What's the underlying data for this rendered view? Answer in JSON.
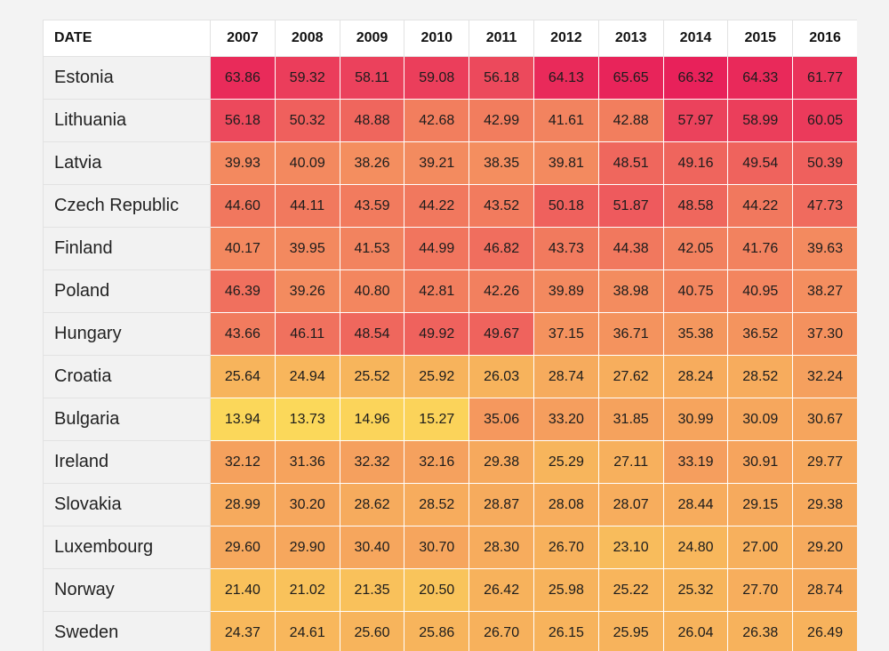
{
  "chart_data": {
    "type": "heatmap",
    "corner_label": "DATE",
    "x": [
      "2007",
      "2008",
      "2009",
      "2010",
      "2011",
      "2012",
      "2013",
      "2014",
      "2015",
      "2016"
    ],
    "y": [
      "Estonia",
      "Lithuania",
      "Latvia",
      "Czech Republic",
      "Finland",
      "Poland",
      "Hungary",
      "Croatia",
      "Bulgaria",
      "Ireland",
      "Slovakia",
      "Luxembourg",
      "Norway",
      "Sweden"
    ],
    "values": [
      [
        "63.86",
        "59.32",
        "58.11",
        "59.08",
        "56.18",
        "64.13",
        "65.65",
        "66.32",
        "64.33",
        "61.77"
      ],
      [
        "56.18",
        "50.32",
        "48.88",
        "42.68",
        "42.99",
        "41.61",
        "42.88",
        "57.97",
        "58.99",
        "60.05"
      ],
      [
        "39.93",
        "40.09",
        "38.26",
        "39.21",
        "38.35",
        "39.81",
        "48.51",
        "49.16",
        "49.54",
        "50.39"
      ],
      [
        "44.60",
        "44.11",
        "43.59",
        "44.22",
        "43.52",
        "50.18",
        "51.87",
        "48.58",
        "44.22",
        "47.73"
      ],
      [
        "40.17",
        "39.95",
        "41.53",
        "44.99",
        "46.82",
        "43.73",
        "44.38",
        "42.05",
        "41.76",
        "39.63"
      ],
      [
        "46.39",
        "39.26",
        "40.80",
        "42.81",
        "42.26",
        "39.89",
        "38.98",
        "40.75",
        "40.95",
        "38.27"
      ],
      [
        "43.66",
        "46.11",
        "48.54",
        "49.92",
        "49.67",
        "37.15",
        "36.71",
        "35.38",
        "36.52",
        "37.30"
      ],
      [
        "25.64",
        "24.94",
        "25.52",
        "25.92",
        "26.03",
        "28.74",
        "27.62",
        "28.24",
        "28.52",
        "32.24"
      ],
      [
        "13.94",
        "13.73",
        "14.96",
        "15.27",
        "35.06",
        "33.20",
        "31.85",
        "30.99",
        "30.09",
        "30.67"
      ],
      [
        "32.12",
        "31.36",
        "32.32",
        "32.16",
        "29.38",
        "25.29",
        "27.11",
        "33.19",
        "30.91",
        "29.77"
      ],
      [
        "28.99",
        "30.20",
        "28.62",
        "28.52",
        "28.87",
        "28.08",
        "28.07",
        "28.44",
        "29.15",
        "29.38"
      ],
      [
        "29.60",
        "29.90",
        "30.40",
        "30.70",
        "28.30",
        "26.70",
        "23.10",
        "24.80",
        "27.00",
        "29.20"
      ],
      [
        "21.40",
        "21.02",
        "21.35",
        "20.50",
        "26.42",
        "25.98",
        "25.22",
        "25.32",
        "27.70",
        "28.74"
      ],
      [
        "24.37",
        "24.61",
        "25.60",
        "25.86",
        "26.70",
        "26.15",
        "25.95",
        "26.04",
        "26.38",
        "26.49"
      ]
    ],
    "color_scale": {
      "low": "#fbd85a",
      "mid": "#f3895f",
      "high": "#e8215a"
    }
  }
}
